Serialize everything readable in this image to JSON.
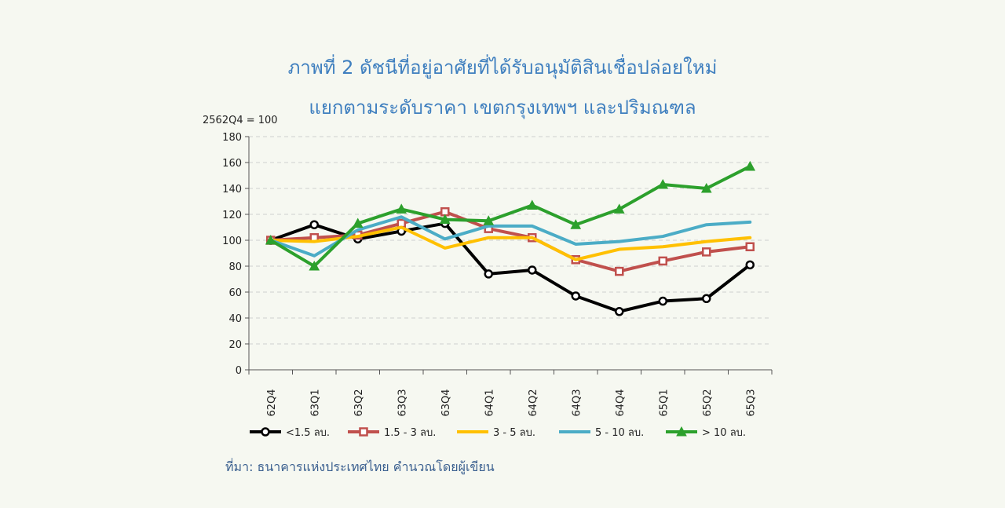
{
  "chart_data": {
    "type": "line",
    "title": "ภาพที่ 2 ดัชนีที่อยู่อาศัยที่ได้รับอนุมัติสินเชื่อปล่อยใหม่",
    "subtitle": "แยกตามระดับราคา เขตกรุงเทพฯ และปริมณฑล",
    "unit_label": "2562Q4 = 100",
    "source": "ที่มา: ธนาคารแห่งประเทศไทย คำนวณโดยผู้เขียน",
    "categories": [
      "62Q4",
      "63Q1",
      "63Q2",
      "63Q3",
      "63Q4",
      "64Q1",
      "64Q2",
      "64Q3",
      "64Q4",
      "65Q1",
      "65Q2",
      "65Q3"
    ],
    "yticks": [
      0,
      20,
      40,
      60,
      80,
      100,
      120,
      140,
      160,
      180
    ],
    "ylim": [
      0,
      180
    ],
    "grid": true,
    "legend_position": "bottom",
    "series": [
      {
        "name": "<1.5 ลบ.",
        "color": "#000000",
        "marker": "circle",
        "values": [
          100,
          112,
          101,
          107,
          113,
          74,
          77,
          57,
          45,
          53,
          55,
          81
        ]
      },
      {
        "name": "1.5 - 3 ลบ.",
        "color": "#c0504d",
        "marker": "square",
        "values": [
          100,
          102,
          104,
          113,
          122,
          109,
          102,
          85,
          76,
          84,
          91,
          95
        ]
      },
      {
        "name": "3 - 5 ลบ.",
        "color": "#ffc000",
        "marker": "none",
        "values": [
          100,
          99,
          103,
          110,
          94,
          102,
          102,
          85,
          93,
          95,
          99,
          102
        ]
      },
      {
        "name": "5 - 10 ลบ.",
        "color": "#4bacc6",
        "marker": "none",
        "values": [
          100,
          88,
          108,
          118,
          101,
          111,
          111,
          97,
          99,
          103,
          112,
          114
        ]
      },
      {
        "name": "> 10 ลบ.",
        "color": "#2ca02c",
        "marker": "triangle",
        "values": [
          100,
          80,
          113,
          124,
          116,
          115,
          127,
          112,
          124,
          143,
          140,
          157
        ]
      }
    ]
  }
}
